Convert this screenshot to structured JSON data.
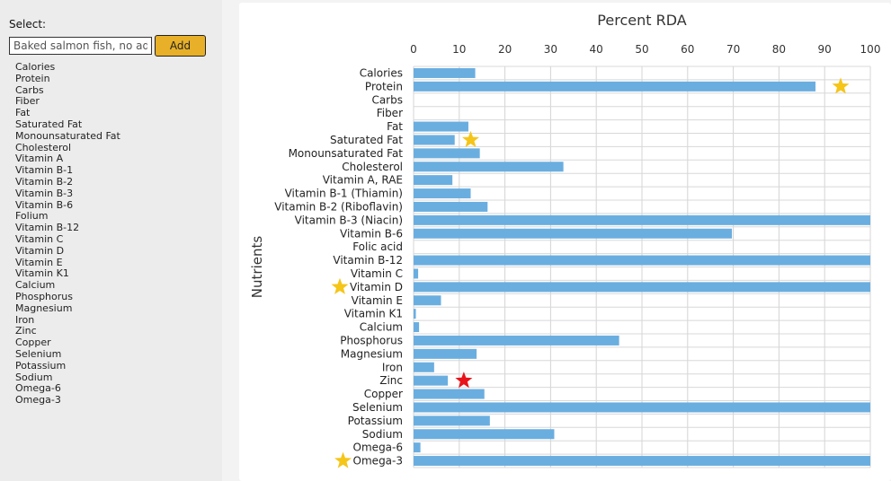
{
  "sidebar": {
    "select_label": "Select:",
    "search": {
      "value": "Baked salmon fish, no added fat"
    },
    "add_label": "Add",
    "nutrients": [
      "Calories",
      "Protein",
      "Carbs",
      "Fiber",
      "Fat",
      "Saturated Fat",
      "Monounsaturated Fat",
      "Cholesterol",
      "Vitamin A",
      "Vitamin B-1",
      "Vitamin B-2",
      "Vitamin B-3",
      "Vitamin B-6",
      "Folium",
      "Vitamin B-12",
      "Vitamin C",
      "Vitamin D",
      "Vitamin E",
      "Vitamin K1",
      "Calcium",
      "Phosphorus",
      "Magnesium",
      "Iron",
      "Zinc",
      "Copper",
      "Selenium",
      "Potassium",
      "Sodium",
      "Omega-6",
      "Omega-3"
    ]
  },
  "chart_data": {
    "type": "bar",
    "orientation": "horizontal",
    "title": "Percent RDA",
    "xlabel": "",
    "ylabel": "Nutrients",
    "xlim": [
      0,
      100
    ],
    "xticks": [
      0,
      10,
      20,
      30,
      40,
      50,
      60,
      70,
      80,
      90,
      100
    ],
    "grid": true,
    "bar_color": "#6aaee0",
    "categories": [
      "Calories",
      "Protein",
      "Carbs",
      "Fiber",
      "Fat",
      "Saturated Fat",
      "Monounsaturated Fat",
      "Cholesterol",
      "Vitamin A, RAE",
      "Vitamin B-1 (Thiamin)",
      "Vitamin B-2 (Riboflavin)",
      "Vitamin B-3 (Niacin)",
      "Vitamin B-6",
      "Folic acid",
      "Vitamin B-12",
      "Vitamin C",
      "Vitamin D",
      "Vitamin E",
      "Vitamin K1",
      "Calcium",
      "Phosphorus",
      "Magnesium",
      "Iron",
      "Zinc",
      "Copper",
      "Selenium",
      "Potassium",
      "Sodium",
      "Omega-6",
      "Omega-3"
    ],
    "values": [
      13.5,
      88,
      0,
      0,
      12,
      9,
      14.5,
      32.8,
      8.5,
      12.5,
      16.2,
      100,
      69.7,
      0,
      100,
      1,
      100,
      6,
      0.5,
      1.2,
      45,
      13.8,
      4.5,
      7.5,
      15.5,
      100,
      16.7,
      30.8,
      1.5,
      100
    ],
    "markers": [
      {
        "category": "Protein",
        "x": 93.5,
        "color": "#f5c518"
      },
      {
        "category": "Saturated Fat",
        "x": 12.5,
        "color": "#f5c518"
      },
      {
        "category": "Vitamin D",
        "label_side": true,
        "color": "#f5c518"
      },
      {
        "category": "Zinc",
        "x": 11,
        "color": "#e8141b"
      },
      {
        "category": "Omega-3",
        "label_side": true,
        "color": "#f5c518"
      }
    ]
  }
}
